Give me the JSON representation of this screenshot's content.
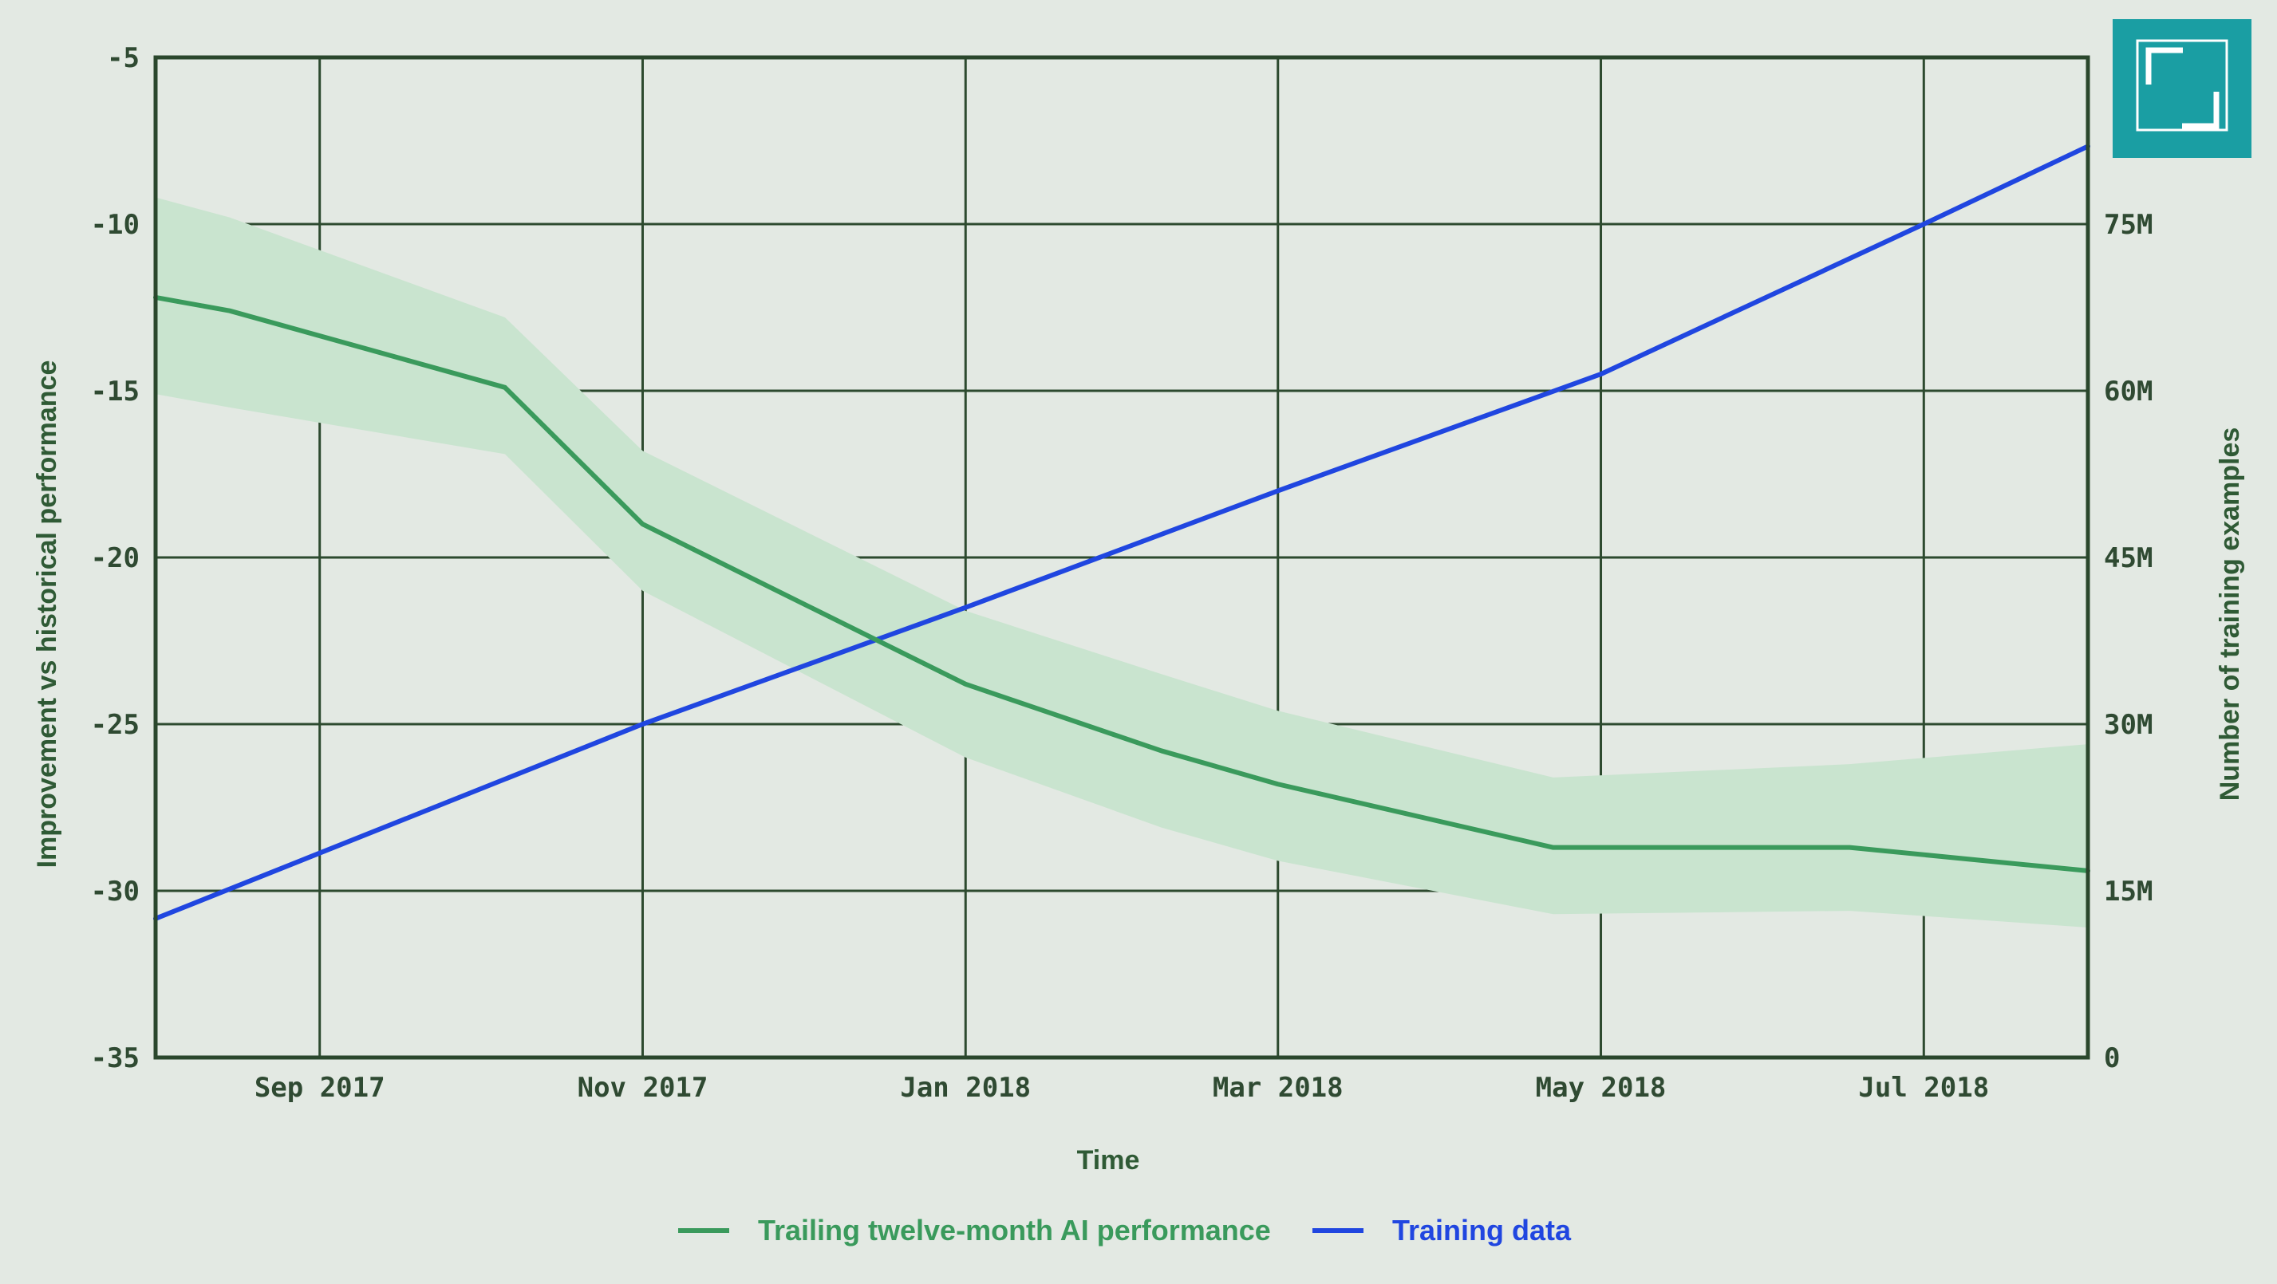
{
  "chart_data": {
    "type": "line",
    "xlabel": "Time",
    "ylabel_left": "Improvement vs historical performance",
    "ylabel_right": "Number of training examples",
    "x_ticks": [
      "Sep 2017",
      "Nov 2017",
      "Jan 2018",
      "Mar 2018",
      "May 2018",
      "Jul 2018"
    ],
    "x_tick_dates": [
      "2017-09-01",
      "2017-11-01",
      "2018-01-01",
      "2018-03-01",
      "2018-05-01",
      "2018-07-01"
    ],
    "xlim": [
      "2017-08-01",
      "2018-08-01"
    ],
    "y_left_ticks": [
      "-5",
      "-10",
      "-15",
      "-20",
      "-25",
      "-30",
      "-35"
    ],
    "y_left_tick_values": [
      -5,
      -10,
      -15,
      -20,
      -25,
      -30,
      -35
    ],
    "ylim_left": [
      -35,
      -5
    ],
    "y_right_ticks": [
      "75M",
      "60M",
      "45M",
      "30M",
      "15M",
      "0"
    ],
    "y_right_tick_values": [
      75000000,
      60000000,
      45000000,
      30000000,
      15000000,
      0
    ],
    "ylim_right": [
      0,
      90000000
    ],
    "grid": true,
    "legend_position": "bottom",
    "series": [
      {
        "name": "Trailing twelve-month AI performance",
        "axis": "left",
        "color": "#3a9a5c",
        "band_color": "#c9e4cf",
        "x": [
          "2017-08-01",
          "2017-08-15",
          "2017-10-06",
          "2017-11-01",
          "2018-01-01",
          "2018-02-07",
          "2018-03-01",
          "2018-04-22",
          "2018-06-17",
          "2018-08-01"
        ],
        "values": [
          -12.2,
          -12.6,
          -14.9,
          -19.0,
          -23.8,
          -25.8,
          -26.8,
          -28.7,
          -28.7,
          -29.4
        ],
        "lower": [
          -15.1,
          -15.5,
          -16.9,
          -21.0,
          -26.0,
          -28.1,
          -29.1,
          -30.7,
          -30.6,
          -31.1
        ],
        "upper": [
          -9.2,
          -9.8,
          -12.8,
          -16.8,
          -21.6,
          -23.5,
          -24.6,
          -26.6,
          -26.2,
          -25.6
        ]
      },
      {
        "name": "Training data",
        "axis": "right",
        "color": "#2046e0",
        "x": [
          "2017-08-01",
          "2017-11-01",
          "2018-01-01",
          "2018-03-01",
          "2018-05-01",
          "2018-07-01",
          "2018-08-01"
        ],
        "values": [
          12500000,
          30000000,
          40500000,
          51000000,
          61500000,
          75000000,
          82000000
        ]
      }
    ]
  },
  "logo": {
    "color": "#1a9ea3",
    "icon": "frame-corners-icon"
  }
}
